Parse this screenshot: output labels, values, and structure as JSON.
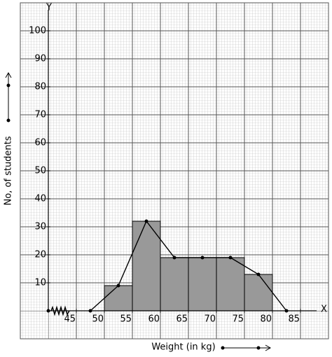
{
  "chart_data": {
    "type": "histogram",
    "x_label": "Weight (in kg)",
    "y_label": "No, of students",
    "x_axis_letter": "X",
    "y_axis_letter": "Y",
    "bins": [
      50,
      55,
      60,
      65,
      70,
      75,
      80
    ],
    "values": [
      9,
      32,
      19,
      19,
      19,
      13
    ],
    "color": "#999999",
    "polygon": {
      "x": [
        47.5,
        52.5,
        57.5,
        62.5,
        67.5,
        72.5,
        77.5,
        82.5
      ],
      "values": [
        0,
        9,
        32,
        19,
        19,
        19,
        13,
        0
      ]
    },
    "xlim": [
      35,
      90
    ],
    "ylim": [
      -10,
      110
    ],
    "xticks": [
      45,
      50,
      55,
      60,
      65,
      70,
      75,
      80,
      85
    ],
    "yticks": [
      10,
      20,
      30,
      40,
      50,
      60,
      70,
      80,
      90,
      100
    ],
    "grid": true
  }
}
